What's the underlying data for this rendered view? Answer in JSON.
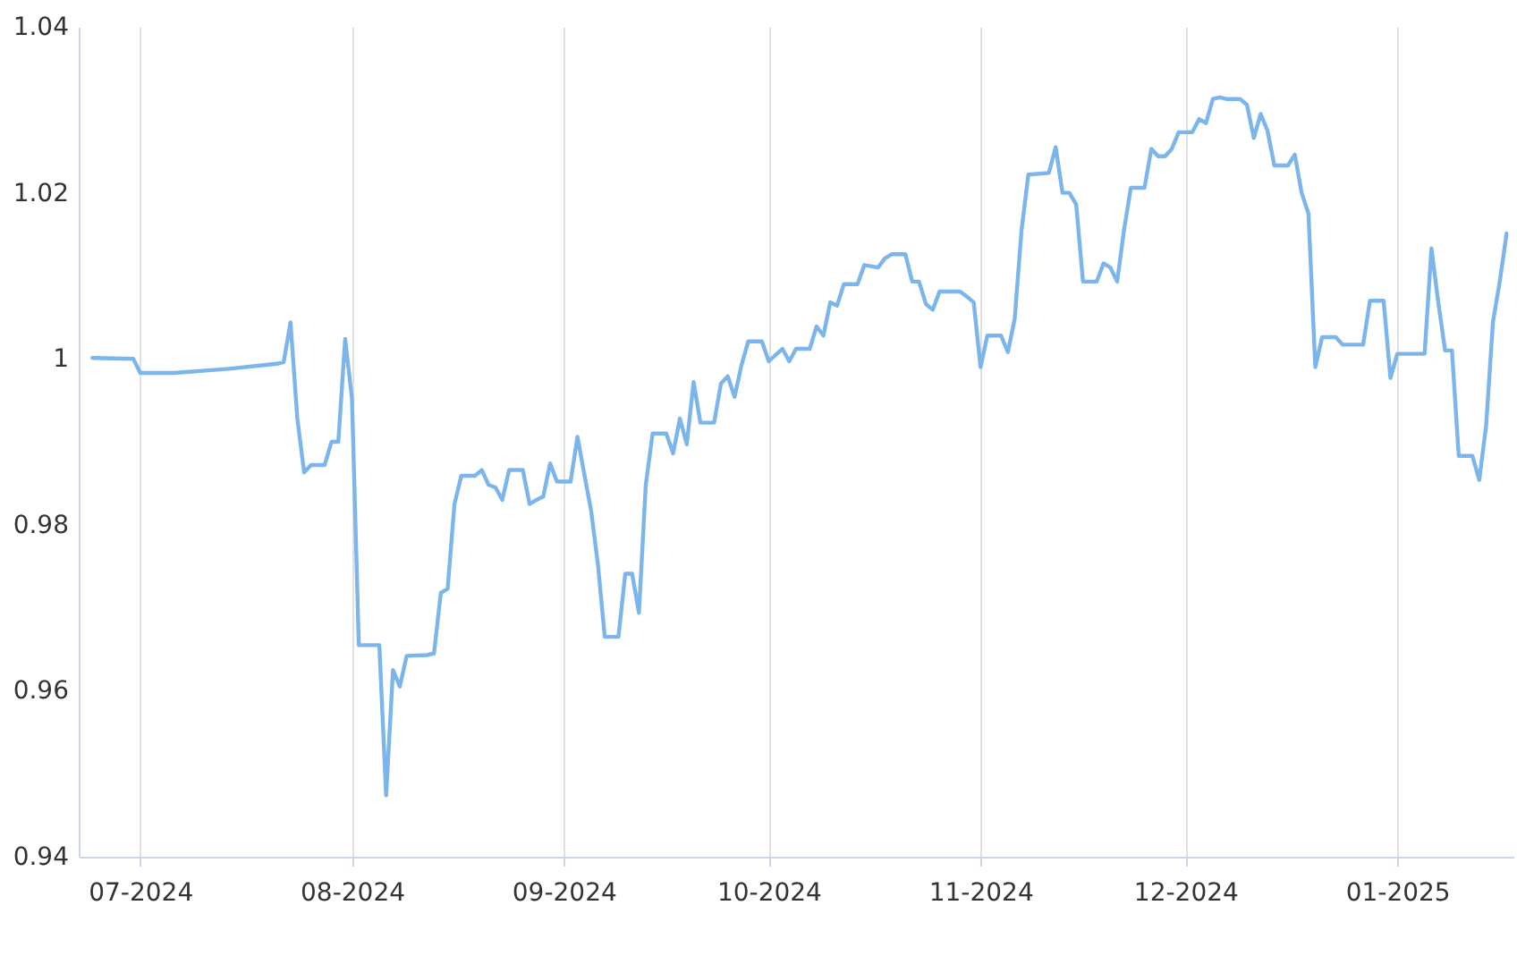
{
  "chart_data": {
    "type": "line",
    "xlim": [
      "2024-06-22",
      "2025-01-18"
    ],
    "xticks": [
      {
        "value": "2024-07-01",
        "label": "07-2024"
      },
      {
        "value": "2024-08-01",
        "label": "08-2024"
      },
      {
        "value": "2024-09-01",
        "label": "09-2024"
      },
      {
        "value": "2024-10-01",
        "label": "10-2024"
      },
      {
        "value": "2024-11-01",
        "label": "11-2024"
      },
      {
        "value": "2024-12-01",
        "label": "12-2024"
      },
      {
        "value": "2025-01-01",
        "label": "01-2025"
      }
    ],
    "ylim": [
      0.94,
      1.04
    ],
    "yticks": [
      0.94,
      0.96,
      0.98,
      1,
      1.02,
      1.04
    ],
    "grid": "x",
    "legend": false,
    "marker": "none",
    "line_style": "solid",
    "x": [
      "2024-06-24",
      "2024-06-30",
      "2024-07-01",
      "2024-07-06",
      "2024-07-14",
      "2024-07-21",
      "2024-07-22",
      "2024-07-23",
      "2024-07-24",
      "2024-07-25",
      "2024-07-26",
      "2024-07-28",
      "2024-07-29",
      "2024-07-30",
      "2024-07-31",
      "2024-08-01",
      "2024-08-02",
      "2024-08-05",
      "2024-08-06",
      "2024-08-07",
      "2024-08-08",
      "2024-08-09",
      "2024-08-12",
      "2024-08-13",
      "2024-08-14",
      "2024-08-15",
      "2024-08-16",
      "2024-08-17",
      "2024-08-19",
      "2024-08-20",
      "2024-08-21",
      "2024-08-22",
      "2024-08-23",
      "2024-08-24",
      "2024-08-26",
      "2024-08-27",
      "2024-08-28",
      "2024-08-29",
      "2024-08-30",
      "2024-08-31",
      "2024-09-02",
      "2024-09-03",
      "2024-09-04",
      "2024-09-05",
      "2024-09-06",
      "2024-09-07",
      "2024-09-09",
      "2024-09-10",
      "2024-09-11",
      "2024-09-12",
      "2024-09-13",
      "2024-09-14",
      "2024-09-16",
      "2024-09-17",
      "2024-09-18",
      "2024-09-19",
      "2024-09-20",
      "2024-09-21",
      "2024-09-23",
      "2024-09-24",
      "2024-09-25",
      "2024-09-26",
      "2024-09-27",
      "2024-09-28",
      "2024-09-30",
      "2024-10-01",
      "2024-10-03",
      "2024-10-04",
      "2024-10-05",
      "2024-10-07",
      "2024-10-08",
      "2024-10-09",
      "2024-10-10",
      "2024-10-11",
      "2024-10-12",
      "2024-10-14",
      "2024-10-15",
      "2024-10-17",
      "2024-10-18",
      "2024-10-19",
      "2024-10-21",
      "2024-10-22",
      "2024-10-23",
      "2024-10-24",
      "2024-10-25",
      "2024-10-26",
      "2024-10-29",
      "2024-10-30",
      "2024-10-31",
      "2024-11-01",
      "2024-11-02",
      "2024-11-04",
      "2024-11-05",
      "2024-11-06",
      "2024-11-07",
      "2024-11-08",
      "2024-11-11",
      "2024-11-12",
      "2024-11-13",
      "2024-11-14",
      "2024-11-15",
      "2024-11-16",
      "2024-11-18",
      "2024-11-19",
      "2024-11-20",
      "2024-11-21",
      "2024-11-22",
      "2024-11-23",
      "2024-11-25",
      "2024-11-26",
      "2024-11-27",
      "2024-11-28",
      "2024-11-29",
      "2024-11-30",
      "2024-12-02",
      "2024-12-03",
      "2024-12-04",
      "2024-12-05",
      "2024-12-06",
      "2024-12-07",
      "2024-12-09",
      "2024-12-10",
      "2024-12-11",
      "2024-12-12",
      "2024-12-13",
      "2024-12-14",
      "2024-12-16",
      "2024-12-17",
      "2024-12-18",
      "2024-12-19",
      "2024-12-20",
      "2024-12-21",
      "2024-12-23",
      "2024-12-24",
      "2024-12-27",
      "2024-12-28",
      "2024-12-30",
      "2024-12-31",
      "2025-01-01",
      "2025-01-05",
      "2025-01-06",
      "2025-01-07",
      "2025-01-08",
      "2025-01-09",
      "2025-01-10",
      "2025-01-12",
      "2025-01-13",
      "2025-01-14",
      "2025-01-15",
      "2025-01-16",
      "2025-01-17"
    ],
    "series": [
      {
        "color": "#7cb5ec",
        "values": [
          1.0001,
          1.0,
          0.9983,
          0.9983,
          0.9988,
          0.9994,
          0.9996,
          1.0044,
          0.9928,
          0.9863,
          0.9872,
          0.9872,
          0.99,
          0.99,
          1.0024,
          0.9952,
          0.9655,
          0.9655,
          0.9474,
          0.9625,
          0.9605,
          0.9642,
          0.9643,
          0.9645,
          0.9718,
          0.9723,
          0.9825,
          0.9859,
          0.9859,
          0.9866,
          0.9848,
          0.9845,
          0.983,
          0.9866,
          0.9866,
          0.9825,
          0.983,
          0.9834,
          0.9874,
          0.9852,
          0.9852,
          0.9906,
          0.9861,
          0.9817,
          0.9752,
          0.9665,
          0.9665,
          0.9741,
          0.9741,
          0.9694,
          0.9848,
          0.991,
          0.991,
          0.9886,
          0.9928,
          0.9897,
          0.9972,
          0.9923,
          0.9923,
          0.997,
          0.9979,
          0.9954,
          0.9992,
          1.0021,
          1.0021,
          0.9997,
          1.0012,
          0.9997,
          1.0012,
          1.0012,
          1.0039,
          1.0028,
          1.0068,
          1.0064,
          1.009,
          1.009,
          1.0113,
          1.011,
          1.0121,
          1.0126,
          1.0126,
          1.0093,
          1.0093,
          1.0066,
          1.0059,
          1.0081,
          1.0081,
          1.0075,
          1.0068,
          0.999,
          1.0028,
          1.0028,
          1.0008,
          1.0048,
          1.0155,
          1.0222,
          1.0224,
          1.0255,
          1.02,
          1.02,
          1.0186,
          1.0093,
          1.0093,
          1.0115,
          1.011,
          1.0093,
          1.0155,
          1.0206,
          1.0206,
          1.0253,
          1.0244,
          1.0244,
          1.0253,
          1.0273,
          1.0273,
          1.0289,
          1.0284,
          1.0313,
          1.0315,
          1.0313,
          1.0313,
          1.0306,
          1.0266,
          1.0295,
          1.0275,
          1.0233,
          1.0233,
          1.0246,
          1.02,
          1.0175,
          0.999,
          1.0026,
          1.0026,
          1.0017,
          1.0017,
          1.007,
          1.007,
          0.9977,
          1.0006,
          1.0006,
          1.0133,
          1.0068,
          1.001,
          1.001,
          0.9883,
          0.9883,
          0.9854,
          0.9919,
          1.0044,
          1.0093,
          1.0151
        ]
      }
    ]
  }
}
